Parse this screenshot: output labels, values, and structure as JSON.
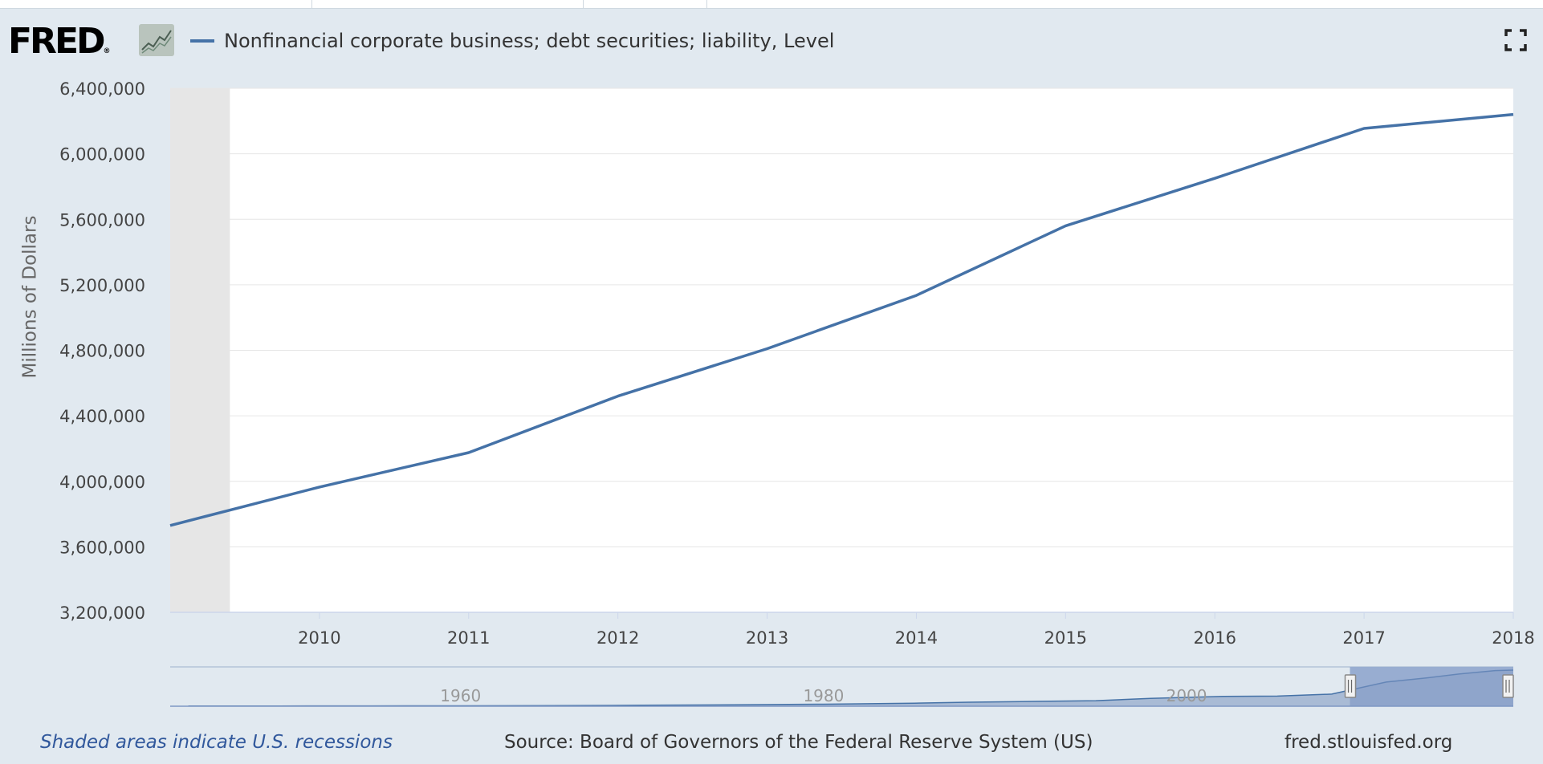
{
  "header": {
    "logo_text": "FRED",
    "logo_reg": "®",
    "logo_icon": "line-graph-icon",
    "fullscreen_icon": "fullscreen-icon"
  },
  "colors": {
    "series": "#4572a7",
    "recession": "#e6e6e6",
    "navigator_fill": "#9fb3d0",
    "navigator_selected": "#7f98c4",
    "background": "#e1e9f0"
  },
  "chart_data": {
    "type": "line",
    "ylabel": "Millions of Dollars",
    "ylim": [
      3200000,
      6400000
    ],
    "yticks": [
      {
        "value": 3200000,
        "label": "3,200,000"
      },
      {
        "value": 3600000,
        "label": "3,600,000"
      },
      {
        "value": 4000000,
        "label": "4,000,000"
      },
      {
        "value": 4400000,
        "label": "4,400,000"
      },
      {
        "value": 4800000,
        "label": "4,800,000"
      },
      {
        "value": 5200000,
        "label": "5,200,000"
      },
      {
        "value": 5600000,
        "label": "5,600,000"
      },
      {
        "value": 6000000,
        "label": "6,000,000"
      },
      {
        "value": 6400000,
        "label": "6,400,000"
      }
    ],
    "xlim": [
      2009.0,
      2018.0
    ],
    "xticks": [
      {
        "value": 2010,
        "label": "2010"
      },
      {
        "value": 2011,
        "label": "2011"
      },
      {
        "value": 2012,
        "label": "2012"
      },
      {
        "value": 2013,
        "label": "2013"
      },
      {
        "value": 2014,
        "label": "2014"
      },
      {
        "value": 2015,
        "label": "2015"
      },
      {
        "value": 2016,
        "label": "2016"
      },
      {
        "value": 2017,
        "label": "2017"
      },
      {
        "value": 2018,
        "label": "2018"
      }
    ],
    "series": [
      {
        "name": "Nonfinancial corporate business; debt securities; liability, Level",
        "points": [
          {
            "x": 2009.0,
            "y": 3730000
          },
          {
            "x": 2010.0,
            "y": 3965000
          },
          {
            "x": 2011.0,
            "y": 4175000
          },
          {
            "x": 2012.0,
            "y": 4520000
          },
          {
            "x": 2013.0,
            "y": 4810000
          },
          {
            "x": 2014.0,
            "y": 5135000
          },
          {
            "x": 2015.0,
            "y": 5560000
          },
          {
            "x": 2016.0,
            "y": 5850000
          },
          {
            "x": 2017.0,
            "y": 6155000
          },
          {
            "x": 2018.0,
            "y": 6240000
          }
        ]
      }
    ],
    "recessions": [
      {
        "start": 2009.0,
        "end": 2009.4
      }
    ],
    "grid": true,
    "navigator": {
      "labels": [
        "1960",
        "1980",
        "2000"
      ],
      "label_years": [
        1960,
        1980,
        2000
      ],
      "range": [
        1944,
        2018
      ],
      "selected": [
        2009,
        2018
      ],
      "series_max": 6240000,
      "series": [
        {
          "x": 1945,
          "y": 30000
        },
        {
          "x": 1950,
          "y": 35000
        },
        {
          "x": 1955,
          "y": 50000
        },
        {
          "x": 1960,
          "y": 75000
        },
        {
          "x": 1965,
          "y": 100000
        },
        {
          "x": 1970,
          "y": 170000
        },
        {
          "x": 1975,
          "y": 250000
        },
        {
          "x": 1980,
          "y": 340000
        },
        {
          "x": 1985,
          "y": 530000
        },
        {
          "x": 1988,
          "y": 690000
        },
        {
          "x": 1992,
          "y": 850000
        },
        {
          "x": 1995,
          "y": 950000
        },
        {
          "x": 1998,
          "y": 1350000
        },
        {
          "x": 2002,
          "y": 1700000
        },
        {
          "x": 2005,
          "y": 1750000
        },
        {
          "x": 2008,
          "y": 2100000
        },
        {
          "x": 2011,
          "y": 4175000
        },
        {
          "x": 2013,
          "y": 4810000
        },
        {
          "x": 2015,
          "y": 5560000
        },
        {
          "x": 2017,
          "y": 6155000
        },
        {
          "x": 2018,
          "y": 6240000
        }
      ]
    }
  },
  "footer": {
    "recession_note": "Shaded areas indicate U.S. recessions",
    "source": "Source: Board of Governors of the Federal Reserve System (US)",
    "url": "fred.stlouisfed.org"
  }
}
